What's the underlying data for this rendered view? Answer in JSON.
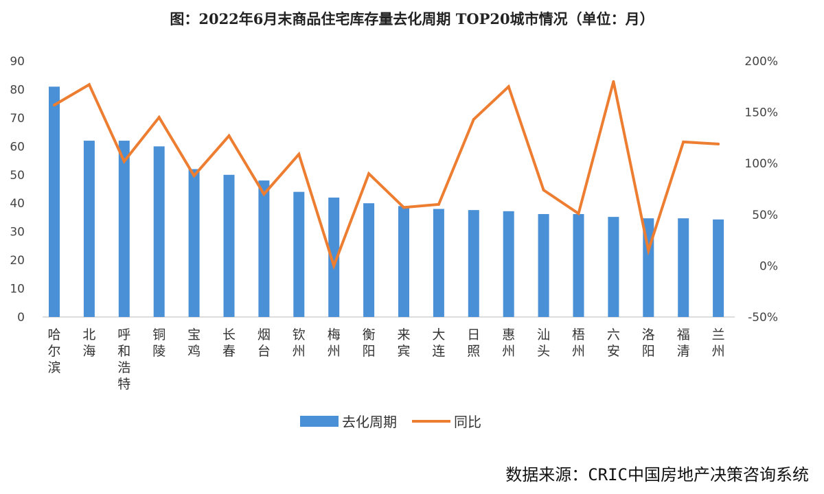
{
  "title": "图：2022年6月末商品住宅库存量去化周期 TOP20城市情况（单位：月）",
  "source": "数据来源：CRIC中国房地产决策咨询系统",
  "chart_data": {
    "type": "bar",
    "title": "图：2022年6月末商品住宅库存量去化周期 TOP20城市情况（单位：月）",
    "categories": [
      "哈尔滨",
      "北海",
      "呼和浩特",
      "铜陵",
      "宝鸡",
      "长春",
      "烟台",
      "钦州",
      "梅州",
      "衡阳",
      "来宾",
      "大连",
      "日照",
      "惠州",
      "汕头",
      "梧州",
      "六安",
      "洛阳",
      "福清",
      "兰州"
    ],
    "series": [
      {
        "name": "去化周期",
        "type": "bar",
        "axis": "left",
        "color": "#4a90d6",
        "values": [
          81,
          62,
          62,
          60,
          52,
          50,
          48,
          44,
          42,
          40,
          39,
          38,
          37.6,
          37.2,
          36.2,
          36.2,
          35.2,
          34.7,
          34.7,
          34.3
        ]
      },
      {
        "name": "同比",
        "type": "line",
        "axis": "right",
        "color": "#ed7d31",
        "values": [
          157,
          177,
          102,
          145,
          88,
          127,
          70,
          109,
          0,
          90,
          57,
          60,
          143,
          175,
          74,
          51,
          180,
          15,
          121,
          119
        ]
      }
    ],
    "ylim_left": [
      0,
      90
    ],
    "yticks_left": [
      "0",
      "10",
      "20",
      "30",
      "40",
      "50",
      "60",
      "70",
      "80",
      "90"
    ],
    "ylim_right": [
      -50,
      200
    ],
    "yticks_right": [
      "-50%",
      "0%",
      "50%",
      "100%",
      "150%",
      "200%"
    ],
    "grid": false,
    "legend": "bottom"
  }
}
